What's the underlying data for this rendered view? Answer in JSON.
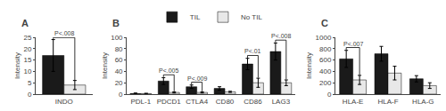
{
  "chart_data": [
    {
      "type": "bar",
      "title": "A",
      "categories": [
        "INDO"
      ],
      "series": [
        {
          "name": "TIL",
          "color": "#1a1a1a",
          "values": [
            17
          ],
          "errors": [
            7
          ]
        },
        {
          "name": "No TIL",
          "color": "#e8e8e8",
          "values": [
            4
          ],
          "errors": [
            2
          ]
        }
      ],
      "ylabel": "Intensity",
      "ylim": [
        0,
        25
      ],
      "yticks": [
        0,
        5,
        10,
        15,
        20,
        25
      ],
      "grid": false,
      "annotations": [
        {
          "category": "INDO",
          "text": "P<.008"
        }
      ]
    },
    {
      "type": "bar",
      "title": "B",
      "categories": [
        "PDL-1",
        "PDCD1",
        "CTLA4",
        "CD80",
        "CD86",
        "LAG3"
      ],
      "series": [
        {
          "name": "TIL",
          "color": "#1a1a1a",
          "values": [
            1,
            23,
            13,
            10,
            53,
            75
          ],
          "errors": [
            1,
            6,
            3,
            3,
            10,
            15
          ]
        },
        {
          "name": "No TIL",
          "color": "#e8e8e8",
          "values": [
            1,
            3,
            3,
            4,
            20,
            20
          ],
          "errors": [
            0.5,
            1,
            1,
            1,
            8,
            5
          ]
        }
      ],
      "ylabel": "Intensity",
      "ylim": [
        0,
        100
      ],
      "yticks": [
        0,
        20,
        40,
        60,
        80,
        100
      ],
      "grid": false,
      "legend": "top",
      "annotations": [
        {
          "category": "PDCD1",
          "text": "P<.005"
        },
        {
          "category": "CTLA4",
          "text": "P<.009"
        },
        {
          "category": "CD86",
          "text": "P<.01"
        },
        {
          "category": "LAG3",
          "text": "P<.008"
        }
      ]
    },
    {
      "type": "bar",
      "title": "C",
      "categories": [
        "HLA-E",
        "HLA-F",
        "HLA-G"
      ],
      "series": [
        {
          "name": "TIL",
          "color": "#1a1a1a",
          "values": [
            620,
            710,
            270
          ],
          "errors": [
            150,
            130,
            55
          ]
        },
        {
          "name": "No TIL",
          "color": "#e8e8e8",
          "values": [
            250,
            370,
            150
          ],
          "errors": [
            80,
            120,
            50
          ]
        }
      ],
      "ylabel": "Intensity",
      "ylim": [
        0,
        1000
      ],
      "yticks": [
        0,
        200,
        400,
        600,
        800,
        1000
      ],
      "grid": false,
      "annotations": [
        {
          "category": "HLA-E",
          "text": "P<.007"
        }
      ]
    }
  ]
}
